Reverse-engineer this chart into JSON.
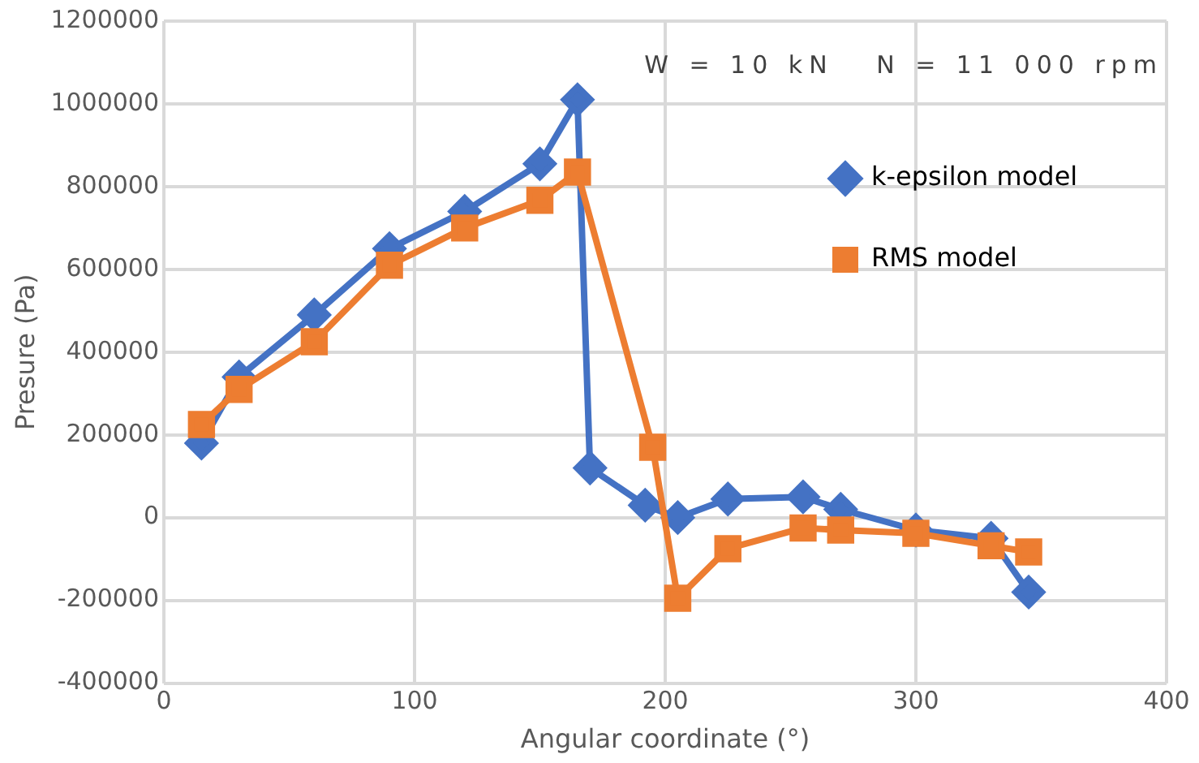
{
  "chart_data": {
    "type": "line",
    "xlabel": "Angular coordinate (°)",
    "ylabel": "Presure (Pa)",
    "annotations": [
      "W = 10 kN   N = 11 000 rpm"
    ],
    "xlim": [
      0,
      400
    ],
    "xticks": [
      0,
      100,
      200,
      300,
      400
    ],
    "ylim": [
      -400000,
      1200000
    ],
    "yticks": [
      -400000,
      -200000,
      0,
      200000,
      400000,
      600000,
      800000,
      1000000,
      1200000
    ],
    "grid": true,
    "legend": "top right",
    "line_style": "solid",
    "series": [
      {
        "name": "k-epsilon model",
        "color": "#4472c4",
        "marker": "diamond",
        "x": [
          15,
          30,
          60,
          90,
          120,
          150,
          165,
          170,
          192,
          205,
          225,
          255,
          270,
          300,
          330,
          345
        ],
        "values": [
          180000,
          340000,
          490000,
          650000,
          740000,
          855000,
          1010000,
          120000,
          30000,
          0,
          45000,
          50000,
          20000,
          -30000,
          -50000,
          -180000
        ]
      },
      {
        "name": "RMS model",
        "color": "#ed7d31",
        "marker": "square",
        "x": [
          15,
          30,
          60,
          90,
          120,
          150,
          165,
          195,
          205,
          225,
          255,
          270,
          300,
          330,
          345
        ],
        "values": [
          225000,
          310000,
          425000,
          610000,
          700000,
          767000,
          835000,
          170000,
          -195000,
          -75000,
          -25000,
          -30000,
          -38000,
          -68000,
          -83000
        ]
      }
    ]
  }
}
